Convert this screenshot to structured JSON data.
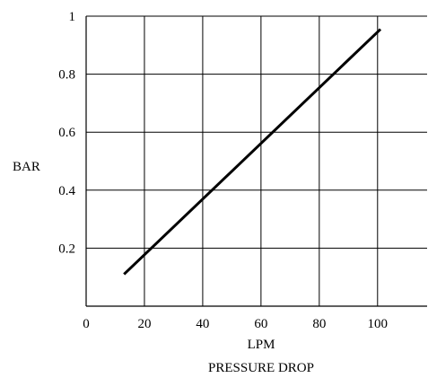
{
  "chart_data": {
    "type": "line",
    "title": "PRESSURE DROP",
    "xlabel": "LPM",
    "ylabel": "BAR",
    "xlim": [
      0,
      117
    ],
    "ylim": [
      0,
      1
    ],
    "x_ticks": [
      0,
      20,
      40,
      60,
      80,
      100
    ],
    "x_tick_labels": [
      "0",
      "20",
      "40",
      "60",
      "80",
      "100"
    ],
    "y_ticks": [
      0.2,
      0.4,
      0.6,
      0.8,
      1
    ],
    "y_tick_labels": [
      "0.2",
      "0.4",
      "0.6",
      "0.8",
      "1"
    ],
    "x_grid": [
      0,
      20,
      40,
      60,
      80,
      100
    ],
    "y_grid": [
      0.2,
      0.4,
      0.6,
      0.8,
      1
    ],
    "grid": true,
    "series": [
      {
        "x": [
          13,
          101
        ],
        "y": [
          0.11,
          0.955
        ],
        "color": "#000000"
      }
    ]
  }
}
